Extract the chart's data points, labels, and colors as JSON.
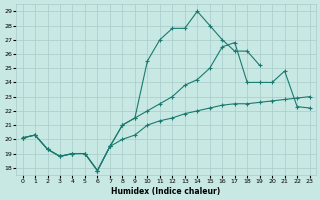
{
  "xlabel": "Humidex (Indice chaleur)",
  "xlim": [
    -0.5,
    23.5
  ],
  "ylim": [
    17.5,
    29.5
  ],
  "xticks": [
    0,
    1,
    2,
    3,
    4,
    5,
    6,
    7,
    8,
    9,
    10,
    11,
    12,
    13,
    14,
    15,
    16,
    17,
    18,
    19,
    20,
    21,
    22,
    23
  ],
  "yticks": [
    18,
    19,
    20,
    21,
    22,
    23,
    24,
    25,
    26,
    27,
    28,
    29
  ],
  "bg_color": "#c8e8e4",
  "line_color": "#1a7a6e",
  "grid_color": "#a8cccc",
  "series1": {
    "x": [
      0,
      1,
      2,
      3,
      4,
      5,
      6,
      7,
      8,
      9,
      10,
      11,
      12,
      13,
      14,
      15,
      16,
      17,
      18,
      19
    ],
    "y": [
      20.1,
      20.3,
      19.3,
      18.8,
      19.0,
      19.0,
      17.8,
      19.5,
      21.0,
      21.5,
      25.5,
      27.0,
      27.8,
      27.8,
      29.0,
      28.0,
      27.0,
      26.2,
      26.2,
      25.2
    ]
  },
  "series2": {
    "x": [
      0,
      1,
      2,
      3,
      4,
      5,
      6,
      7,
      8,
      9,
      10,
      11,
      12,
      13,
      14,
      15,
      16,
      17,
      18,
      19,
      20,
      21,
      22,
      23
    ],
    "y": [
      20.1,
      20.3,
      19.3,
      18.8,
      19.0,
      19.0,
      17.8,
      19.5,
      21.0,
      21.5,
      22.0,
      22.5,
      23.0,
      23.8,
      24.2,
      25.0,
      26.5,
      26.8,
      24.0,
      24.0,
      24.0,
      24.8,
      22.3,
      22.2
    ]
  },
  "series3": {
    "x": [
      0,
      1,
      2,
      3,
      4,
      5,
      6,
      7,
      8,
      9,
      10,
      11,
      12,
      13,
      14,
      15,
      16,
      17,
      18,
      19,
      20,
      21,
      22,
      23
    ],
    "y": [
      20.1,
      20.3,
      19.3,
      18.8,
      19.0,
      19.0,
      17.8,
      19.5,
      20.0,
      20.3,
      21.0,
      21.3,
      21.5,
      21.8,
      22.0,
      22.2,
      22.4,
      22.5,
      22.5,
      22.6,
      22.7,
      22.8,
      22.9,
      23.0
    ]
  }
}
